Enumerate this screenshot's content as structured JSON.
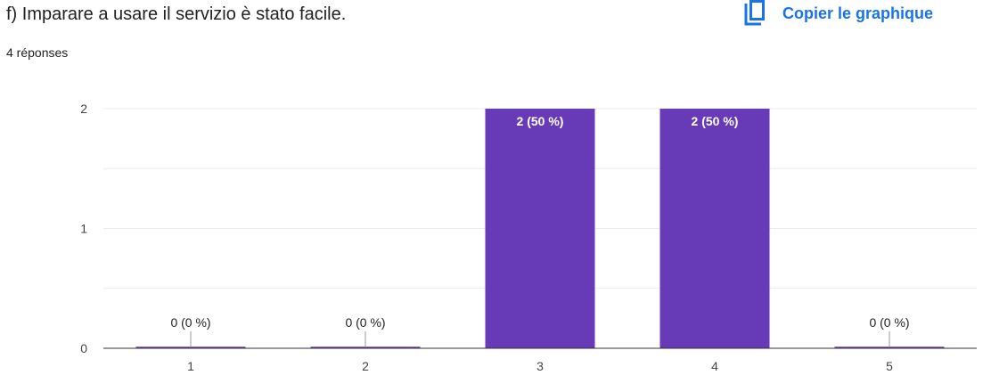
{
  "header": {
    "title": "f) Imparare a usare il servizio è stato facile.",
    "responses": "4 réponses",
    "copy_label": "Copier le graphique",
    "copy_icon": "copy-icon"
  },
  "colors": {
    "bar": "#673ab7",
    "accent": "#1a73e8",
    "axis": "#333333",
    "grid": "#ebebeb"
  },
  "chart_data": {
    "type": "bar",
    "categories": [
      "1",
      "2",
      "3",
      "4",
      "5"
    ],
    "values": [
      0,
      0,
      2,
      2,
      0
    ],
    "data_labels": [
      "0 (0 %)",
      "0 (0 %)",
      "2 (50 %)",
      "2 (50 %)",
      "0 (0 %)"
    ],
    "ylim": [
      0,
      2
    ],
    "yticks": [
      "0",
      "1",
      "2"
    ],
    "grid": true,
    "title": "",
    "xlabel": "",
    "ylabel": ""
  }
}
